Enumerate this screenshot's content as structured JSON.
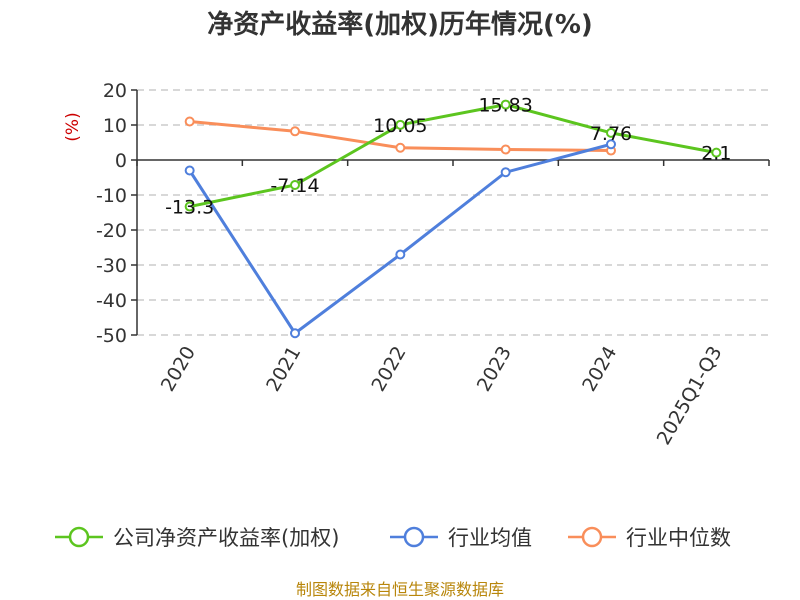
{
  "chart_data": {
    "type": "line",
    "title": "净资产收益率(加权)历年情况(%)",
    "ylabel": "(%)",
    "xlabel": "",
    "categories": [
      "2020",
      "2021",
      "2022",
      "2023",
      "2024",
      "2025Q1-Q3"
    ],
    "ylim": [
      -50,
      20
    ],
    "yticks": [
      20,
      10,
      0,
      -10,
      -20,
      -30,
      -40,
      -50
    ],
    "grid": true,
    "legend_position": "bottom",
    "series": [
      {
        "name": "公司净资产收益率(加权)",
        "color": "#5cc51f",
        "values": [
          -13.3,
          -7.14,
          10.05,
          15.83,
          7.76,
          2.1
        ],
        "labels": [
          "-13.3",
          "-7.14",
          "10.05",
          "15.83",
          "7.76",
          "2.1"
        ]
      },
      {
        "name": "行业均值",
        "color": "#4f7fdc",
        "values": [
          -3,
          -49.5,
          -27,
          -3.5,
          4.5,
          null
        ]
      },
      {
        "name": "行业中位数",
        "color": "#f98e5a",
        "values": [
          11,
          8.2,
          3.5,
          3.0,
          2.7,
          null
        ]
      }
    ]
  },
  "source": "制图数据来自恒生聚源数据库"
}
